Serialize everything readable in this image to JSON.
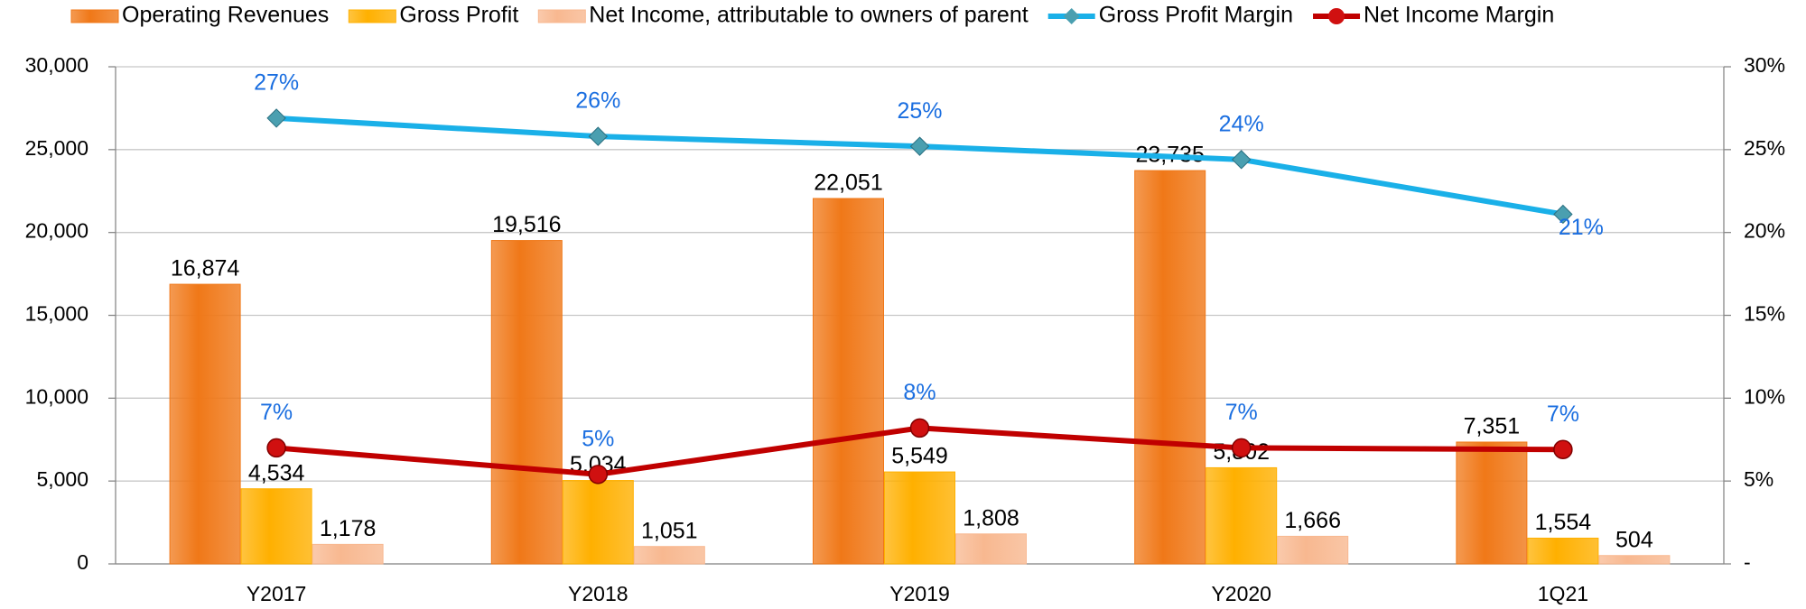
{
  "chart_data": {
    "type": "combo",
    "categories": [
      "Y2017",
      "Y2018",
      "Y2019",
      "Y2020",
      "1Q21"
    ],
    "series": [
      {
        "name": "Operating Revenues",
        "type": "bar",
        "color": "#f07818",
        "values": [
          16874,
          19516,
          22051,
          23735,
          7351
        ],
        "value_labels": [
          "16,874",
          "19,516",
          "22,051",
          "23,735",
          "7,351"
        ]
      },
      {
        "name": "Gross Profit",
        "type": "bar",
        "color": "#ffb000",
        "values": [
          4534,
          5034,
          5549,
          5802,
          1554
        ],
        "value_labels": [
          "4,534",
          "5,034",
          "5,549",
          "5,802",
          "1,554"
        ]
      },
      {
        "name": "Net Income, attributable to owners of parent",
        "type": "bar",
        "color": "#f8b890",
        "values": [
          1178,
          1051,
          1808,
          1666,
          504
        ],
        "value_labels": [
          "1,178",
          "1,051",
          "1,808",
          "1,666",
          "504"
        ]
      },
      {
        "name": "Gross Profit Margin",
        "type": "line",
        "axis": "y2",
        "color": "#1ab0e8",
        "marker": "diamond",
        "marker_color": "#4a9fb0",
        "values": [
          26.9,
          25.8,
          25.2,
          24.4,
          21.1
        ],
        "value_labels": [
          "27%",
          "26%",
          "25%",
          "24%",
          "21%"
        ]
      },
      {
        "name": "Net Income Margin",
        "type": "line",
        "axis": "y2",
        "color": "#c00000",
        "marker": "circle",
        "marker_color": "#d01010",
        "values": [
          7.0,
          5.4,
          8.2,
          7.0,
          6.9
        ],
        "value_labels": [
          "7%",
          "5%",
          "8%",
          "7%",
          "7%"
        ]
      }
    ],
    "ylim": [
      0,
      30000
    ],
    "yticks": [
      0,
      {
        "value": 5000,
        "label": "5,000"
      },
      {
        "value": 10000,
        "label": "10,000"
      },
      {
        "value": 15000,
        "label": "15,000"
      },
      {
        "value": 20000,
        "label": "20,000"
      },
      {
        "value": 25000,
        "label": "25,000"
      },
      {
        "value": 30000,
        "label": "30,000"
      }
    ],
    "y2lim": [
      0,
      30
    ],
    "y2ticks": [
      {
        "value": 0,
        "label": "-"
      },
      {
        "value": 5,
        "label": "5%"
      },
      {
        "value": 10,
        "label": "10%"
      },
      {
        "value": 15,
        "label": "15%"
      },
      {
        "value": 20,
        "label": "20%"
      },
      {
        "value": 25,
        "label": "25%"
      },
      {
        "value": 30,
        "label": "30%"
      }
    ],
    "grid": true,
    "legend": "top"
  }
}
